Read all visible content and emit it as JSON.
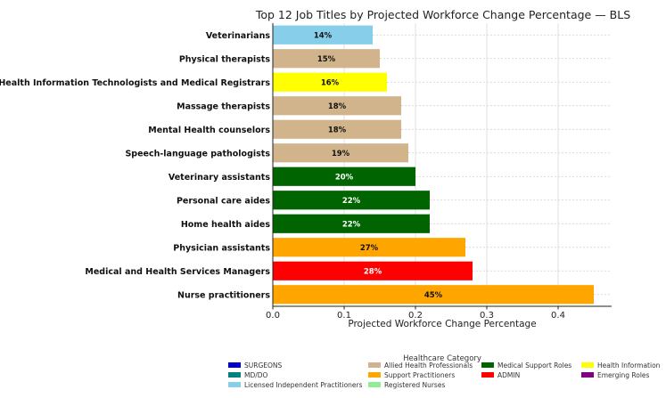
{
  "chart_data": {
    "type": "bar",
    "orientation": "horizontal",
    "title": "Top 12 Job Titles by Projected Workforce Change Percentage — BLS",
    "xlabel": "Projected Workforce Change Percentage",
    "ylabel": "",
    "xlim": [
      0,
      0.475
    ],
    "xticks": [
      "0.0",
      "0.1",
      "0.2",
      "0.3",
      "0.4"
    ],
    "xtick_values": [
      0,
      0.1,
      0.2,
      0.3,
      0.4
    ],
    "grid": true,
    "categories": [
      "Veterinarians",
      "Physical therapists",
      "Health Information Technologists and Medical Registrars",
      "Massage therapists",
      "Mental Health counselors",
      "Speech-language pathologists",
      "Veterinary assistants",
      "Personal care aides",
      "Home health aides",
      "Physician assistants",
      "Medical and Health Services Managers",
      "Nurse practitioners"
    ],
    "values": [
      0.14,
      0.15,
      0.16,
      0.18,
      0.18,
      0.19,
      0.2,
      0.22,
      0.22,
      0.27,
      0.28,
      0.45
    ],
    "data_labels": [
      "14%",
      "15%",
      "16%",
      "18%",
      "18%",
      "19%",
      "20%",
      "22%",
      "22%",
      "27%",
      "28%",
      "45%"
    ],
    "bar_colors": [
      "#87ceeb",
      "#d2b48c",
      "#ffff00",
      "#d2b48c",
      "#d2b48c",
      "#d2b48c",
      "#006400",
      "#006400",
      "#006400",
      "#ffa500",
      "#ff0000",
      "#ffa500"
    ],
    "label_colors": [
      "#111111",
      "#111111",
      "#111111",
      "#111111",
      "#111111",
      "#111111",
      "#ffffff",
      "#ffffff",
      "#ffffff",
      "#111111",
      "#ffffff",
      "#111111"
    ],
    "legend": {
      "title": "Healthcare Category",
      "placement": "bottom",
      "entries": [
        {
          "label": "SURGEONS",
          "color": "#0000cd"
        },
        {
          "label": "MD/DO",
          "color": "#008080"
        },
        {
          "label": "Licensed Independent Practitioners",
          "color": "#87ceeb"
        },
        {
          "label": "Allied Health Professionals",
          "color": "#d2b48c"
        },
        {
          "label": "Support Practitioners",
          "color": "#ffa500"
        },
        {
          "label": "Registered Nurses",
          "color": "#90ee90"
        },
        {
          "label": "Medical Support Roles",
          "color": "#006400"
        },
        {
          "label": "ADMIN",
          "color": "#ff0000"
        },
        {
          "label": "Health Information",
          "color": "#ffff00"
        },
        {
          "label": "Emerging Roles",
          "color": "#800080"
        }
      ]
    }
  }
}
